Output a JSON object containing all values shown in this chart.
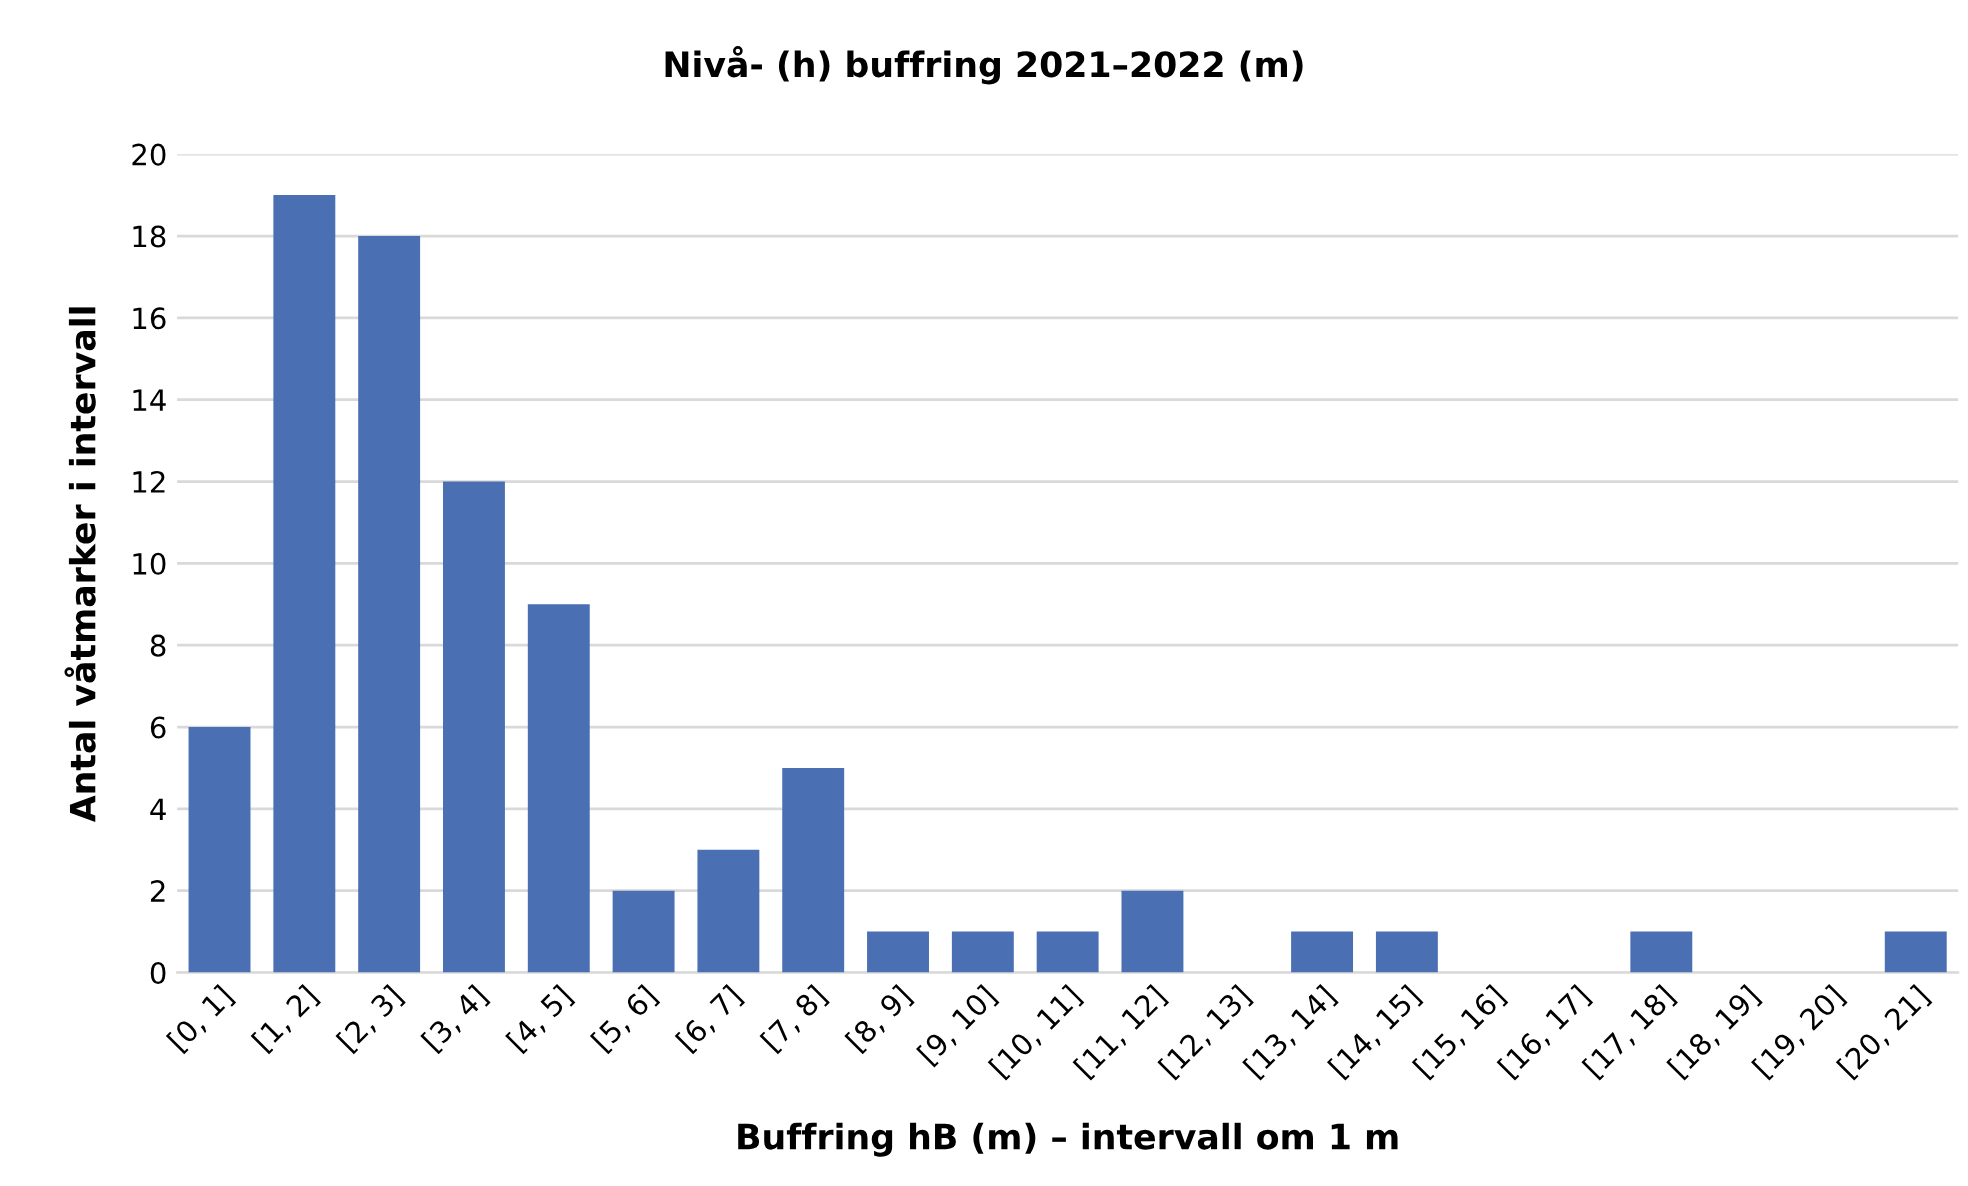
{
  "chart_data": {
    "type": "bar",
    "title": "Nivå- (h) buffring 2021–2022 (m)",
    "xlabel": "Buffring hB (m) – intervall om 1 m",
    "ylabel": "Antal våtmarker i intervall",
    "categories": [
      "[0, 1]",
      "[1, 2]",
      "[2, 3]",
      "[3, 4]",
      "[4, 5]",
      "[5, 6]",
      "[6, 7]",
      "[7, 8]",
      "[8, 9]",
      "[9, 10]",
      "[10, 11]",
      "[11, 12]",
      "[12, 13]",
      "[13, 14]",
      "[14, 15]",
      "[15, 16]",
      "[16, 17]",
      "[17, 18]",
      "[18, 19]",
      "[19, 20]",
      "[20, 21]"
    ],
    "values": [
      6,
      19,
      18,
      12,
      9,
      2,
      3,
      5,
      1,
      1,
      1,
      2,
      0,
      1,
      1,
      0,
      0,
      1,
      0,
      0,
      1
    ],
    "color": "#4a6fb3",
    "ylim": [
      0,
      20
    ],
    "yticks": [
      0,
      2,
      4,
      6,
      8,
      10,
      12,
      14,
      16,
      18,
      20
    ],
    "grid": "y"
  }
}
